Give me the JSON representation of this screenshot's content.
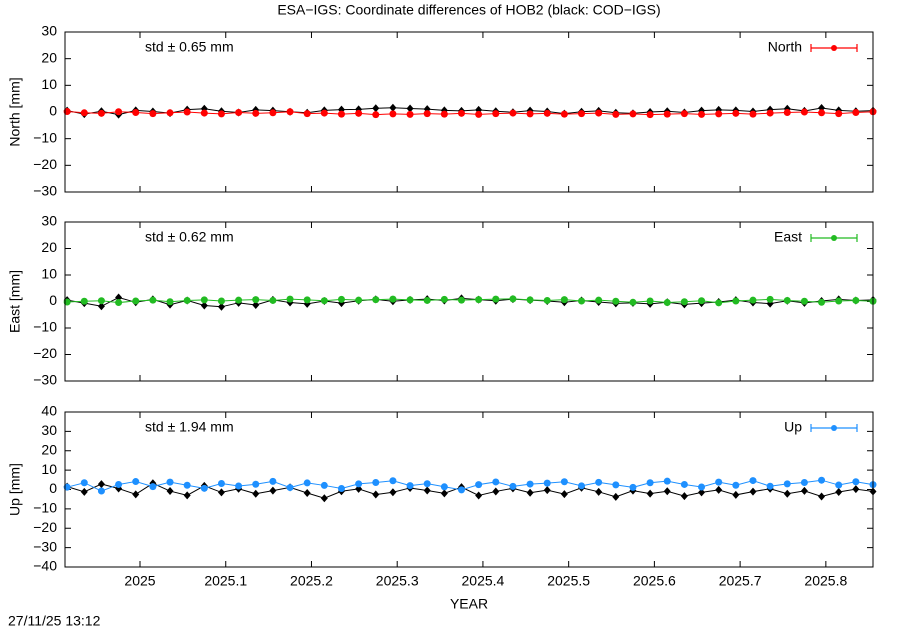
{
  "title": "ESA−IGS: Coordinate differences of HOB2 (black: COD−IGS)",
  "xlabel": "YEAR",
  "timestamp": "27/11/25 13:12",
  "chart_data": [
    {
      "type": "scatter",
      "ylabel": "North [mm]",
      "annotation": "std ± 0.65 mm",
      "x": [
        2024.915,
        2024.935,
        2024.955,
        2024.975,
        2024.995,
        2025.015,
        2025.035,
        2025.055,
        2025.075,
        2025.095,
        2025.115,
        2025.135,
        2025.155,
        2025.175,
        2025.195,
        2025.215,
        2025.235,
        2025.255,
        2025.275,
        2025.295,
        2025.315,
        2025.335,
        2025.355,
        2025.375,
        2025.395,
        2025.415,
        2025.435,
        2025.455,
        2025.475,
        2025.495,
        2025.515,
        2025.535,
        2025.555,
        2025.575,
        2025.595,
        2025.615,
        2025.635,
        2025.655,
        2025.675,
        2025.695,
        2025.715,
        2025.735,
        2025.755,
        2025.775,
        2025.795,
        2025.815,
        2025.835,
        2025.855
      ],
      "series": [
        {
          "color": "#000000",
          "values": [
            0.5,
            -0.8,
            0.3,
            -1.0,
            0.6,
            0.2,
            -0.4,
            0.9,
            1.2,
            0.3,
            -0.2,
            0.8,
            0.5,
            0.1,
            -0.3,
            0.6,
            0.9,
            1.0,
            1.4,
            1.6,
            1.3,
            1.1,
            0.6,
            0.4,
            0.8,
            0.3,
            -0.1,
            0.5,
            0.2,
            -0.6,
            0.1,
            0.4,
            -0.3,
            -0.5,
            0.0,
            0.3,
            -0.2,
            0.5,
            0.8,
            0.6,
            0.2,
            0.9,
            1.2,
            0.4,
            1.5,
            0.6,
            0.3,
            0.5
          ]
        },
        {
          "name": "North",
          "color": "#ff0000",
          "values": [
            0.2,
            -0.3,
            -0.5,
            0.1,
            -0.2,
            -0.6,
            -0.3,
            0.0,
            -0.4,
            -0.7,
            -0.2,
            -0.5,
            -0.3,
            0.1,
            -0.6,
            -0.4,
            -0.8,
            -0.5,
            -1.0,
            -0.7,
            -0.9,
            -0.6,
            -0.8,
            -0.5,
            -0.9,
            -0.6,
            -0.4,
            -0.7,
            -0.5,
            -0.8,
            -0.6,
            -0.4,
            -0.9,
            -0.7,
            -1.0,
            -0.8,
            -0.6,
            -0.9,
            -0.7,
            -0.5,
            -0.8,
            -0.4,
            -0.2,
            0.0,
            -0.3,
            -0.6,
            -0.2,
            0.1
          ]
        }
      ],
      "xlim": [
        2024.9125,
        2025.855
      ],
      "ylim": [
        -30,
        30
      ],
      "yticks": [
        {
          "value": -30,
          "label": "−30"
        },
        {
          "value": -20,
          "label": "−20"
        },
        {
          "value": -10,
          "label": "−10"
        },
        0,
        10,
        20,
        30
      ]
    },
    {
      "type": "scatter",
      "ylabel": "East [mm]",
      "annotation": "std ± 0.62 mm",
      "x": [
        2024.915,
        2024.935,
        2024.955,
        2024.975,
        2024.995,
        2025.015,
        2025.035,
        2025.055,
        2025.075,
        2025.095,
        2025.115,
        2025.135,
        2025.155,
        2025.175,
        2025.195,
        2025.215,
        2025.235,
        2025.255,
        2025.275,
        2025.295,
        2025.315,
        2025.335,
        2025.355,
        2025.375,
        2025.395,
        2025.415,
        2025.435,
        2025.455,
        2025.475,
        2025.495,
        2025.515,
        2025.535,
        2025.555,
        2025.575,
        2025.595,
        2025.615,
        2025.635,
        2025.655,
        2025.675,
        2025.695,
        2025.715,
        2025.735,
        2025.755,
        2025.775,
        2025.795,
        2025.815,
        2025.835,
        2025.855
      ],
      "series": [
        {
          "color": "#000000",
          "values": [
            0.5,
            -0.6,
            -1.8,
            1.5,
            -0.3,
            0.8,
            -1.2,
            0.4,
            -1.5,
            -2.0,
            -0.5,
            -1.3,
            0.6,
            -0.4,
            -0.9,
            0.2,
            -0.6,
            0.3,
            0.8,
            0.1,
            0.6,
            0.9,
            0.4,
            1.2,
            0.7,
            0.3,
            0.9,
            0.5,
            0.2,
            -0.3,
            0.4,
            -0.2,
            -0.7,
            -0.5,
            -0.9,
            -0.3,
            -1.1,
            -0.6,
            -0.2,
            0.5,
            -0.4,
            -0.8,
            0.3,
            -0.5,
            0.2,
            0.8,
            0.4,
            0.6
          ]
        },
        {
          "name": "East",
          "color": "#22bb22",
          "values": [
            -0.2,
            0.1,
            0.3,
            -0.4,
            0.2,
            0.5,
            -0.1,
            0.4,
            0.6,
            0.2,
            0.5,
            0.7,
            0.4,
            0.9,
            0.6,
            0.3,
            0.8,
            0.5,
            0.7,
            0.9,
            0.6,
            0.4,
            0.8,
            0.5,
            0.7,
            0.9,
            1.0,
            0.6,
            0.4,
            0.7,
            0.2,
            0.5,
            0.1,
            -0.3,
            0.2,
            -0.4,
            -0.1,
            0.3,
            -0.5,
            0.2,
            0.5,
            0.8,
            0.4,
            0.1,
            -0.3,
            0.2,
            0.4,
            0.1
          ]
        }
      ],
      "xlim": [
        2024.9125,
        2025.855
      ],
      "ylim": [
        -30,
        30
      ],
      "yticks": [
        {
          "value": -30,
          "label": "−30"
        },
        {
          "value": -20,
          "label": "−20"
        },
        {
          "value": -10,
          "label": "−10"
        },
        0,
        10,
        20,
        30
      ]
    },
    {
      "type": "scatter",
      "ylabel": "Up [mm]",
      "annotation": "std ± 1.94 mm",
      "x": [
        2024.915,
        2024.935,
        2024.955,
        2024.975,
        2024.995,
        2025.015,
        2025.035,
        2025.055,
        2025.075,
        2025.095,
        2025.115,
        2025.135,
        2025.155,
        2025.175,
        2025.195,
        2025.215,
        2025.235,
        2025.255,
        2025.275,
        2025.295,
        2025.315,
        2025.335,
        2025.355,
        2025.375,
        2025.395,
        2025.415,
        2025.435,
        2025.455,
        2025.475,
        2025.495,
        2025.515,
        2025.535,
        2025.555,
        2025.575,
        2025.595,
        2025.615,
        2025.635,
        2025.655,
        2025.675,
        2025.695,
        2025.715,
        2025.735,
        2025.755,
        2025.775,
        2025.795,
        2025.815,
        2025.835,
        2025.855
      ],
      "series": [
        {
          "color": "#000000",
          "values": [
            1.5,
            -1.2,
            2.8,
            0.5,
            -2.5,
            3.2,
            -0.8,
            -3.0,
            1.9,
            -1.5,
            0.4,
            -2.2,
            -0.6,
            1.1,
            -1.8,
            -4.5,
            -0.9,
            0.3,
            -2.6,
            -1.4,
            0.8,
            -0.5,
            -2.0,
            1.2,
            -3.1,
            -1.0,
            0.6,
            -1.7,
            -0.3,
            -2.4,
            0.9,
            -1.2,
            -3.8,
            -0.6,
            -2.1,
            -0.9,
            -3.4,
            -1.5,
            -0.2,
            -2.8,
            -1.1,
            0.4,
            -2.2,
            -0.7,
            -3.6,
            -1.3,
            0.2,
            -1.0
          ]
        },
        {
          "name": "Up",
          "color": "#1e90ff",
          "values": [
            1.2,
            3.5,
            -0.8,
            2.6,
            4.1,
            1.5,
            3.8,
            2.2,
            0.6,
            3.1,
            1.8,
            2.7,
            4.2,
            1.0,
            3.4,
            2.1,
            0.5,
            2.9,
            3.6,
            4.5,
            2.0,
            3.0,
            1.4,
            -0.2,
            2.5,
            3.9,
            1.6,
            2.8,
            3.3,
            4.0,
            1.9,
            3.7,
            2.4,
            1.1,
            3.5,
            4.3,
            2.6,
            1.3,
            3.8,
            2.2,
            4.6,
            1.7,
            2.9,
            3.6,
            4.8,
            2.3,
            4.0,
            2.5
          ]
        }
      ],
      "xlim": [
        2024.9125,
        2025.855
      ],
      "ylim": [
        -40,
        40
      ],
      "yticks": [
        {
          "value": -40,
          "label": "−40"
        },
        {
          "value": -30,
          "label": "−30"
        },
        {
          "value": -20,
          "label": "−20"
        },
        {
          "value": -10,
          "label": "−10"
        },
        0,
        10,
        20,
        30,
        40
      ],
      "xticks": [
        2025,
        2025.1,
        2025.2,
        2025.3,
        2025.4,
        2025.5,
        2025.6,
        2025.7,
        2025.8
      ]
    }
  ]
}
